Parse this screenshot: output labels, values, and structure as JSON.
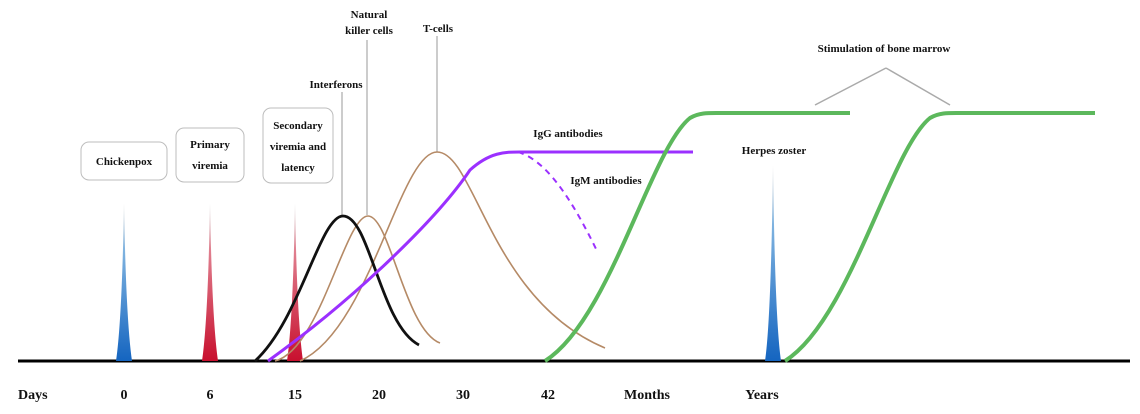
{
  "axis": {
    "days_label": "Days",
    "ticks": [
      "0",
      "6",
      "15",
      "20",
      "30",
      "42"
    ],
    "months_label": "Months",
    "years_label": "Years"
  },
  "events": {
    "chickenpox": "Chickenpox",
    "primary_viremia": [
      "Primary",
      "viremia"
    ],
    "secondary_viremia": [
      "Secondary",
      "viremia and",
      "latency"
    ],
    "herpes_zoster": "Herpes zoster"
  },
  "responses": {
    "interferons": "Interferons",
    "nk_cells": [
      "Natural",
      "killer cells"
    ],
    "t_cells": "T-cells",
    "igg": "IgG antibodies",
    "igm": "IgM antibodies",
    "bone_marrow": "Stimulation of bone marrow"
  },
  "colors": {
    "blue_spike": "#1f77c9",
    "red_spike": "#c8102e",
    "interferon_curve": "#111111",
    "brown_curves": "#b58a66",
    "antibody_curves": "#9b30ff",
    "bone_marrow_curves": "#5cb85c"
  }
}
